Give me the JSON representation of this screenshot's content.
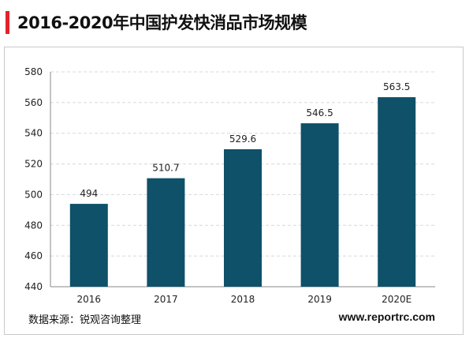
{
  "header": {
    "title": "2016-2020年中国护发快消品市场规模"
  },
  "colors": {
    "accent_bar": "#e0242b",
    "bar_fill": "#0e5168",
    "grid": "#d8d8d8",
    "axis": "#888888"
  },
  "chart_data": {
    "type": "bar",
    "title": "2016-2020年中国护发快消品市场规模",
    "xlabel": "",
    "ylabel": "",
    "categories": [
      "2016",
      "2017",
      "2018",
      "2019",
      "2020E"
    ],
    "values": [
      494,
      510.7,
      529.6,
      546.5,
      563.5
    ],
    "value_labels": [
      "494",
      "510.7",
      "529.6",
      "546.5",
      "563.5"
    ],
    "ylim": [
      440,
      580
    ],
    "yticks": [
      "440",
      "460",
      "480",
      "500",
      "520",
      "540",
      "560",
      "580"
    ],
    "grid": true,
    "legend": "none"
  },
  "footer": {
    "source": "数据来源：锐观咨询整理",
    "website": "www.reportrc.com"
  }
}
